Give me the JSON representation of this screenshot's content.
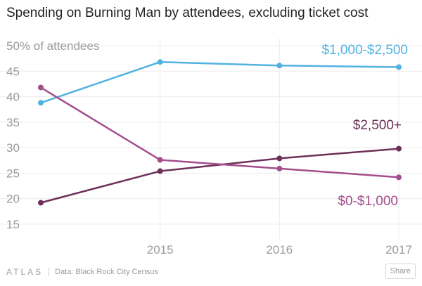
{
  "chart_data": {
    "type": "line",
    "title": "Spending on Burning Man by attendees, excluding ticket cost",
    "ylabel_suffix": "% of attendees",
    "xlabel": "",
    "x": [
      2014,
      2015,
      2016,
      2017
    ],
    "x_tick_labels": [
      "2015",
      "2016",
      "2017"
    ],
    "x_ticks": [
      2015,
      2016,
      2017
    ],
    "y_ticks": [
      50,
      45,
      40,
      35,
      30,
      25,
      20,
      15
    ],
    "ylim": [
      15,
      50
    ],
    "xlim": [
      2014,
      2017
    ],
    "grid": true,
    "legend": "direct-labels",
    "series": [
      {
        "name": "$1,000-$2,500",
        "color": "#51b2e0",
        "values": [
          38.8,
          46.8,
          46.1,
          45.8
        ]
      },
      {
        "name": "$2,500+",
        "color": "#6d3058",
        "values": [
          19.2,
          25.4,
          27.9,
          29.8
        ]
      },
      {
        "name": "$0-$1,000",
        "color": "#a34d8d",
        "values": [
          41.8,
          27.6,
          25.9,
          24.2
        ]
      }
    ]
  },
  "footer": {
    "logo": "ATLAS",
    "source": "Data:  Black Rock City Census",
    "share_label": "Share"
  }
}
